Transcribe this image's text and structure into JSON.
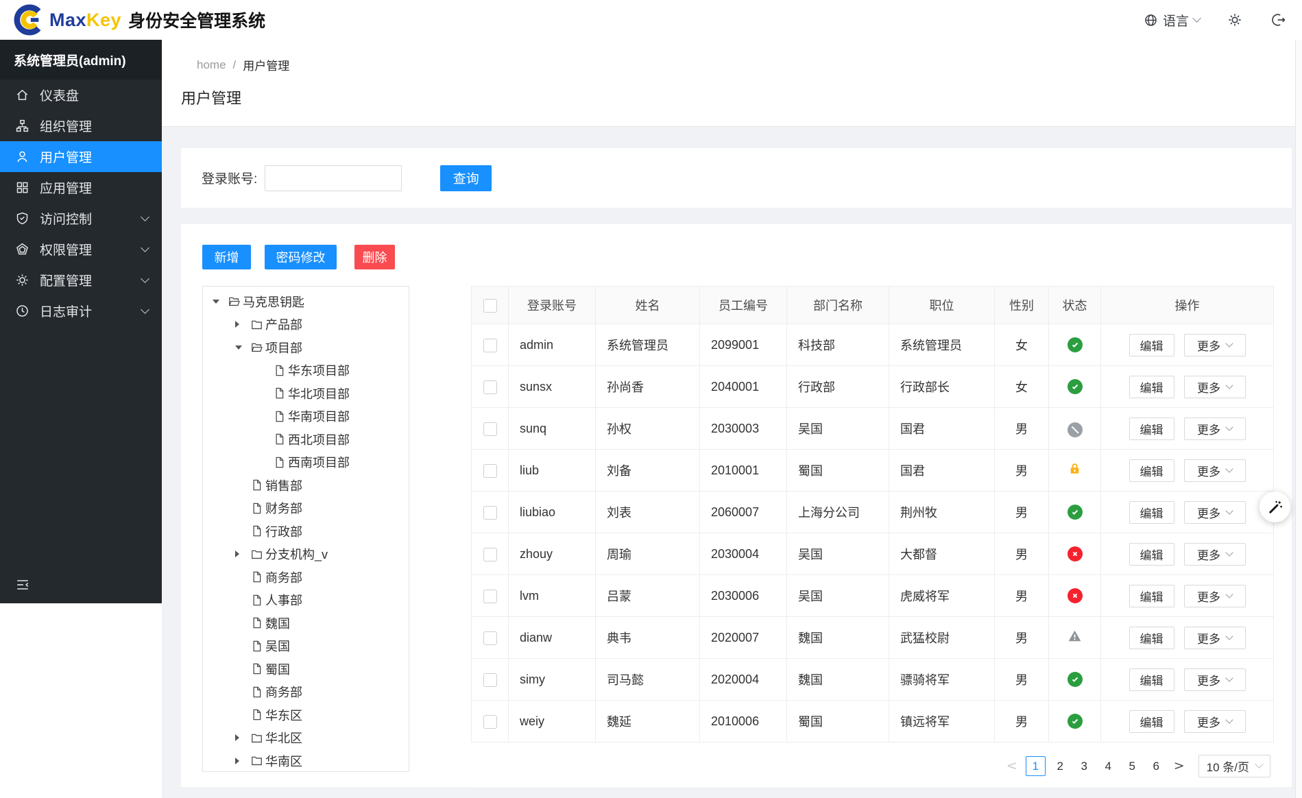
{
  "brand": {
    "name_max": "Max",
    "name_key": "Key",
    "app_title": "身份安全管理系统"
  },
  "topbar": {
    "language_label": "语言"
  },
  "sidebar": {
    "user_label": "系统管理员(admin)",
    "items": [
      {
        "key": "dashboard",
        "label": "仪表盘",
        "icon": "home-icon",
        "active": false,
        "expandable": false
      },
      {
        "key": "organizations",
        "label": "组织管理",
        "icon": "org-icon",
        "active": false,
        "expandable": false
      },
      {
        "key": "users",
        "label": "用户管理",
        "icon": "user-icon",
        "active": true,
        "expandable": false
      },
      {
        "key": "applications",
        "label": "应用管理",
        "icon": "apps-icon",
        "active": false,
        "expandable": false
      },
      {
        "key": "access-control",
        "label": "访问控制",
        "icon": "shield-icon",
        "active": false,
        "expandable": true
      },
      {
        "key": "permissions",
        "label": "权限管理",
        "icon": "gem-icon",
        "active": false,
        "expandable": true
      },
      {
        "key": "config",
        "label": "配置管理",
        "icon": "gear-icon",
        "active": false,
        "expandable": true
      },
      {
        "key": "audit",
        "label": "日志审计",
        "icon": "clock-icon",
        "active": false,
        "expandable": true
      }
    ]
  },
  "breadcrumb": {
    "home": "home",
    "separator": "/",
    "current": "用户管理"
  },
  "page_title": "用户管理",
  "search": {
    "label": "登录账号:",
    "value": "",
    "button_label": "查询"
  },
  "toolbar": {
    "add_label": "新增",
    "password_label": "密码修改",
    "delete_label": "删除"
  },
  "tree": {
    "items": [
      {
        "label": "马克思钥匙",
        "level": 0,
        "node": "open"
      },
      {
        "label": "产品部",
        "level": 1,
        "node": "closed"
      },
      {
        "label": "项目部",
        "level": 1,
        "node": "open"
      },
      {
        "label": "华东项目部",
        "level": 2,
        "node": "leaf"
      },
      {
        "label": "华北项目部",
        "level": 2,
        "node": "leaf"
      },
      {
        "label": "华南项目部",
        "level": 2,
        "node": "leaf"
      },
      {
        "label": "西北项目部",
        "level": 2,
        "node": "leaf"
      },
      {
        "label": "西南项目部",
        "level": 2,
        "node": "leaf"
      },
      {
        "label": "销售部",
        "level": 1,
        "node": "leaf"
      },
      {
        "label": "财务部",
        "level": 1,
        "node": "leaf"
      },
      {
        "label": "行政部",
        "level": 1,
        "node": "leaf"
      },
      {
        "label": "分支机构_v",
        "level": 1,
        "node": "closed"
      },
      {
        "label": "商务部",
        "level": 1,
        "node": "leaf"
      },
      {
        "label": "人事部",
        "level": 1,
        "node": "leaf"
      },
      {
        "label": "魏国",
        "level": 1,
        "node": "leaf"
      },
      {
        "label": "吴国",
        "level": 1,
        "node": "leaf"
      },
      {
        "label": "蜀国",
        "level": 1,
        "node": "leaf"
      },
      {
        "label": "商务部",
        "level": 1,
        "node": "leaf"
      },
      {
        "label": "华东区",
        "level": 1,
        "node": "leaf"
      },
      {
        "label": "华北区",
        "level": 1,
        "node": "closed"
      },
      {
        "label": "华南区",
        "level": 1,
        "node": "closed"
      }
    ]
  },
  "table": {
    "columns": [
      "登录账号",
      "姓名",
      "员工编号",
      "部门名称",
      "职位",
      "性别",
      "状态",
      "操作"
    ],
    "actions": {
      "edit_label": "编辑",
      "more_label": "更多"
    },
    "rows": [
      {
        "account": "admin",
        "name": "系统管理员",
        "employee_no": "2099001",
        "department": "科技部",
        "position": "系统管理员",
        "gender": "女",
        "status": "active"
      },
      {
        "account": "sunsx",
        "name": "孙尚香",
        "employee_no": "2040001",
        "department": "行政部",
        "position": "行政部长",
        "gender": "女",
        "status": "active"
      },
      {
        "account": "sunq",
        "name": "孙权",
        "employee_no": "2030003",
        "department": "吴国",
        "position": "国君",
        "gender": "男",
        "status": "disabled"
      },
      {
        "account": "liub",
        "name": "刘备",
        "employee_no": "2010001",
        "department": "蜀国",
        "position": "国君",
        "gender": "男",
        "status": "locked"
      },
      {
        "account": "liubiao",
        "name": "刘表",
        "employee_no": "2060007",
        "department": "上海分公司",
        "position": "荆州牧",
        "gender": "男",
        "status": "active"
      },
      {
        "account": "zhouy",
        "name": "周瑜",
        "employee_no": "2030004",
        "department": "吴国",
        "position": "大都督",
        "gender": "男",
        "status": "inactive"
      },
      {
        "account": "lvm",
        "name": "吕蒙",
        "employee_no": "2030006",
        "department": "吴国",
        "position": "虎威将军",
        "gender": "男",
        "status": "inactive"
      },
      {
        "account": "dianw",
        "name": "典韦",
        "employee_no": "2020007",
        "department": "魏国",
        "position": "武猛校尉",
        "gender": "男",
        "status": "warning"
      },
      {
        "account": "simy",
        "name": "司马懿",
        "employee_no": "2020004",
        "department": "魏国",
        "position": "骠骑将军",
        "gender": "男",
        "status": "active"
      },
      {
        "account": "weiy",
        "name": "魏延",
        "employee_no": "2010006",
        "department": "蜀国",
        "position": "镇远将军",
        "gender": "男",
        "status": "active"
      }
    ]
  },
  "pagination": {
    "prev_label": "<",
    "next_label": ">",
    "pages": [
      "1",
      "2",
      "3",
      "4",
      "5",
      "6"
    ],
    "current": "1",
    "page_size_label": "10 条/页"
  },
  "colors": {
    "primary": "#1890ff",
    "danger": "#fa4b50",
    "success": "#2b9e3f",
    "error": "#f5222d",
    "locked": "#fbb114",
    "disabled": "#9aa0a6",
    "sidebar_bg": "#24292e",
    "page_bg": "#f0f2f5",
    "brand_blue": "#1f3d99",
    "brand_yellow": "#f5c400"
  }
}
